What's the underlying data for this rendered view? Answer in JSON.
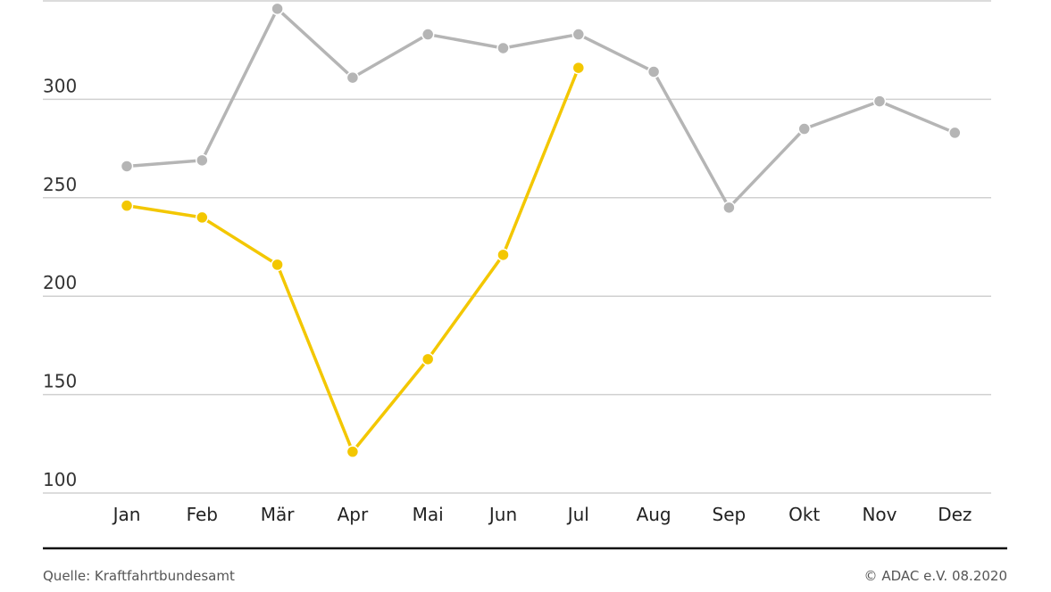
{
  "chart_data": {
    "type": "line",
    "categories": [
      "Jan",
      "Feb",
      "Mär",
      "Apr",
      "Mai",
      "Jun",
      "Jul",
      "Aug",
      "Sep",
      "Okt",
      "Nov",
      "Dez"
    ],
    "series": [
      {
        "color": "#b5b5b5",
        "values": [
          266,
          269,
          346,
          311,
          333,
          326,
          333,
          314,
          245,
          285,
          299,
          283
        ]
      },
      {
        "color": "#f3c700",
        "values": [
          246,
          240,
          216,
          121,
          168,
          221,
          316,
          null,
          null,
          null,
          null,
          null
        ]
      }
    ],
    "ylim": [
      100,
      350
    ],
    "yticks": [
      100,
      150,
      200,
      250,
      300
    ],
    "grid": true,
    "source": "Quelle: Kraftfahrtbundesamt",
    "copyright": "© ADAC e.V. 08.2020"
  }
}
